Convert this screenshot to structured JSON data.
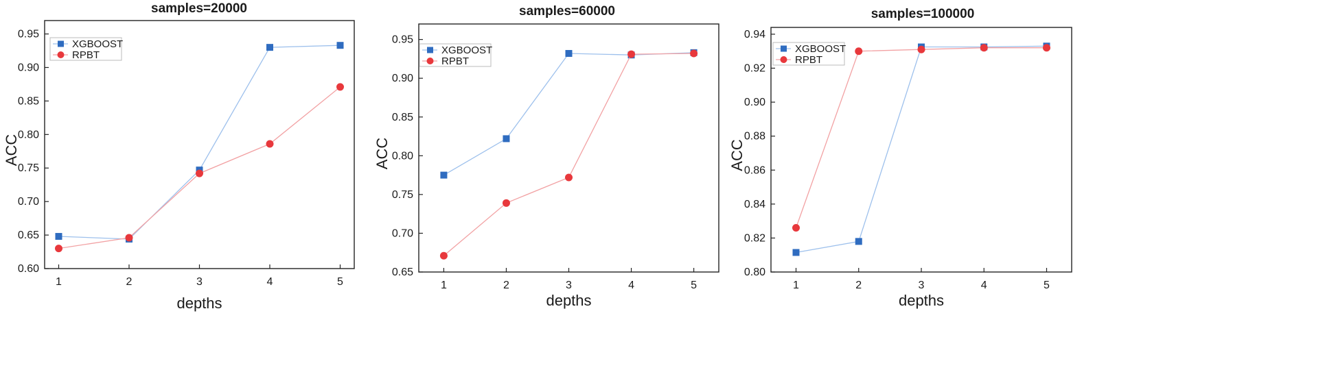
{
  "colors": {
    "xgboost": "#2f6cc0",
    "rpbt": "#e8383c",
    "xgboost_line": "#9dc0ec",
    "rpbt_line": "#f2a1a3",
    "frame": "#222222"
  },
  "chart_data": [
    {
      "type": "line",
      "title": "samples=20000",
      "xlabel": "depths",
      "ylabel": "ACC",
      "x": [
        1,
        2,
        3,
        4,
        5
      ],
      "xlim": [
        0.8,
        5.2
      ],
      "ylim": [
        0.6,
        0.97
      ],
      "yticks": [
        "0.60",
        "0.65",
        "0.70",
        "0.75",
        "0.80",
        "0.85",
        "0.90",
        "0.95"
      ],
      "xticks": [
        "1",
        "2",
        "3",
        "4",
        "5"
      ],
      "legend": "top-left",
      "series": [
        {
          "name": "XGBOOST",
          "marker": "square",
          "values": [
            0.648,
            0.644,
            0.747,
            0.93,
            0.933
          ]
        },
        {
          "name": "RPBT",
          "marker": "circle",
          "values": [
            0.63,
            0.646,
            0.742,
            0.786,
            0.871
          ]
        }
      ]
    },
    {
      "type": "line",
      "title": "samples=60000",
      "xlabel": "depths",
      "ylabel": "ACC",
      "x": [
        1,
        2,
        3,
        4,
        5
      ],
      "xlim": [
        0.6,
        5.4
      ],
      "ylim": [
        0.65,
        0.97
      ],
      "yticks": [
        "0.65",
        "0.70",
        "0.75",
        "0.80",
        "0.85",
        "0.90",
        "0.95"
      ],
      "xticks": [
        "1",
        "2",
        "3",
        "4",
        "5"
      ],
      "legend": "top-left",
      "series": [
        {
          "name": "XGBOOST",
          "marker": "square",
          "values": [
            0.775,
            0.822,
            0.932,
            0.93,
            0.933
          ]
        },
        {
          "name": "RPBT",
          "marker": "circle",
          "values": [
            0.671,
            0.739,
            0.772,
            0.931,
            0.932
          ]
        }
      ]
    },
    {
      "type": "line",
      "title": "samples=100000",
      "xlabel": "depths",
      "ylabel": "ACC",
      "x": [
        1,
        2,
        3,
        4,
        5
      ],
      "xlim": [
        0.6,
        5.4
      ],
      "ylim": [
        0.8,
        0.944
      ],
      "yticks": [
        "0.80",
        "0.82",
        "0.84",
        "0.86",
        "0.88",
        "0.90",
        "0.92",
        "0.94"
      ],
      "xticks": [
        "1",
        "2",
        "3",
        "4",
        "5"
      ],
      "legend": "top-left",
      "series": [
        {
          "name": "XGBOOST",
          "marker": "square",
          "values": [
            0.8115,
            0.818,
            0.9325,
            0.9325,
            0.933
          ]
        },
        {
          "name": "RPBT",
          "marker": "circle",
          "values": [
            0.826,
            0.93,
            0.931,
            0.932,
            0.932
          ]
        }
      ]
    }
  ]
}
